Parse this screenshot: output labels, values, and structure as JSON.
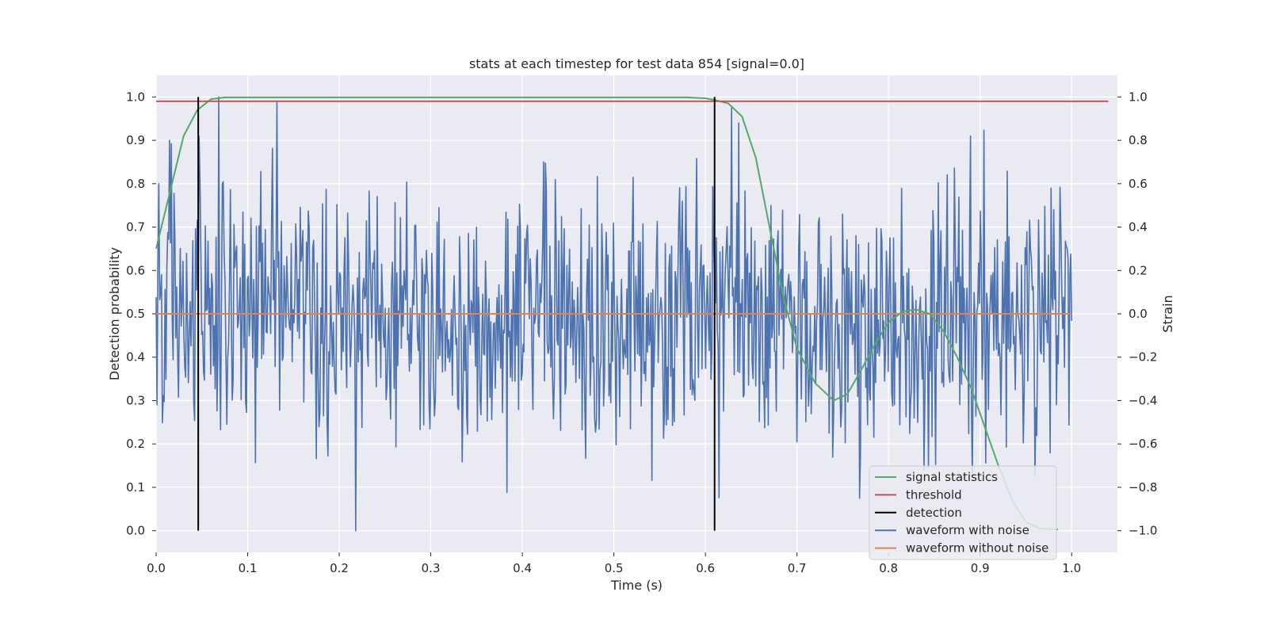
{
  "chart_data": {
    "type": "line",
    "title": "stats at each timestep for test data 854 [signal=0.0]",
    "xlabel": "Time (s)",
    "ylabel_left": "Detection probability",
    "ylabel_right": "Strain",
    "xlim": [
      0.0,
      1.05
    ],
    "ylim_left": [
      -0.05,
      1.05
    ],
    "ylim_right": [
      -1.1,
      1.1
    ],
    "x_ticks": [
      0.0,
      0.1,
      0.2,
      0.3,
      0.4,
      0.5,
      0.6,
      0.7,
      0.8,
      0.9,
      1.0
    ],
    "x_tick_labels": [
      "0.0",
      "0.1",
      "0.2",
      "0.3",
      "0.4",
      "0.5",
      "0.6",
      "0.7",
      "0.8",
      "0.9",
      "1.0"
    ],
    "y_left_ticks": [
      0.0,
      0.1,
      0.2,
      0.3,
      0.4,
      0.5,
      0.6,
      0.7,
      0.8,
      0.9,
      1.0
    ],
    "y_left_tick_labels": [
      "0.0",
      "0.1",
      "0.2",
      "0.3",
      "0.4",
      "0.5",
      "0.6",
      "0.7",
      "0.8",
      "0.9",
      "1.0"
    ],
    "y_right_ticks": [
      -1.0,
      -0.8,
      -0.6,
      -0.4,
      -0.2,
      0.0,
      0.2,
      0.4,
      0.6,
      0.8,
      1.0
    ],
    "y_right_tick_labels": [
      "−1.0",
      "−0.8",
      "−0.6",
      "−0.4",
      "−0.2",
      "0.0",
      "0.2",
      "0.4",
      "0.6",
      "0.8",
      "1.0"
    ],
    "grid": true,
    "background": "#eaeaf2",
    "legend_position": "lower-right",
    "legend": [
      {
        "label": "signal statistics",
        "color": "#55a868"
      },
      {
        "label": "threshold",
        "color": "#c44e52"
      },
      {
        "label": "detection",
        "color": "#000000"
      },
      {
        "label": "waveform with noise",
        "color": "#4c72b0"
      },
      {
        "label": "waveform without noise",
        "color": "#dd8452"
      }
    ],
    "signal_statistics": {
      "x": [
        0.0,
        0.015,
        0.03,
        0.045,
        0.06,
        0.075,
        0.09,
        0.2,
        0.4,
        0.58,
        0.6,
        0.61,
        0.625,
        0.64,
        0.655,
        0.67,
        0.685,
        0.7,
        0.72,
        0.74,
        0.755,
        0.77,
        0.785,
        0.8,
        0.815,
        0.83,
        0.845,
        0.86,
        0.875,
        0.89,
        0.905,
        0.92,
        0.935,
        0.95,
        0.965,
        0.985
      ],
      "y": [
        0.65,
        0.78,
        0.91,
        0.97,
        0.995,
        0.999,
        0.999,
        0.999,
        0.999,
        0.999,
        0.997,
        0.993,
        0.985,
        0.955,
        0.86,
        0.7,
        0.54,
        0.42,
        0.34,
        0.3,
        0.315,
        0.37,
        0.43,
        0.48,
        0.505,
        0.51,
        0.5,
        0.46,
        0.4,
        0.33,
        0.24,
        0.15,
        0.07,
        0.02,
        0.005,
        0.003
      ]
    },
    "threshold": {
      "value": 0.99,
      "x_range": [
        0.0,
        1.04
      ]
    },
    "detections": [
      {
        "x": 0.046,
        "y_range": [
          0.0,
          1.0
        ]
      },
      {
        "x": 0.61,
        "y_range": [
          0.0,
          1.0
        ]
      }
    ],
    "waveform_with_noise": {
      "x_range": [
        0.0,
        1.0
      ],
      "n_points": 1024,
      "y_range_strain": [
        -1.0,
        1.0
      ],
      "notable_values": [
        {
          "x": 0.015,
          "y": 0.8
        },
        {
          "x": 0.047,
          "y": 0.82
        },
        {
          "x": 0.068,
          "y": 1.0
        },
        {
          "x": 0.132,
          "y": 0.98
        },
        {
          "x": 0.218,
          "y": -1.0
        },
        {
          "x": 0.636,
          "y": 0.88
        },
        {
          "x": 0.768,
          "y": -0.85
        },
        {
          "x": 0.89,
          "y": 0.82
        },
        {
          "x": 0.995,
          "y": 0.3
        }
      ]
    },
    "waveform_without_noise": {
      "x_range": [
        0.0,
        1.0
      ],
      "y": 0.0
    }
  }
}
